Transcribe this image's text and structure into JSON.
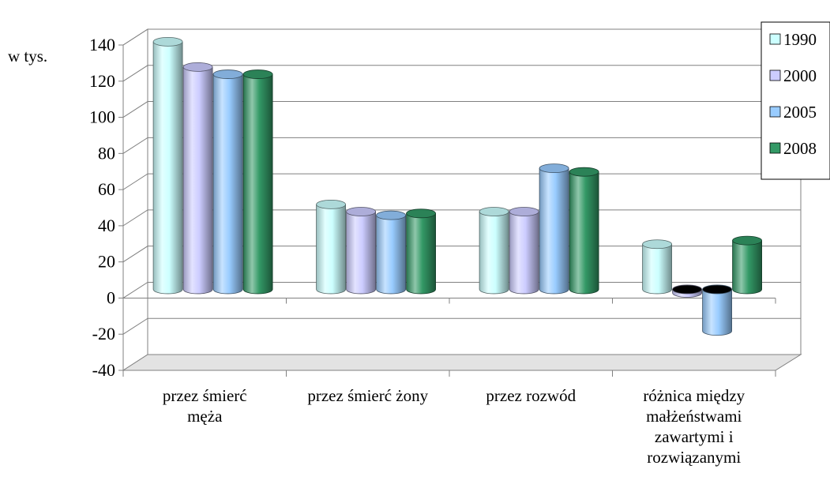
{
  "chart_data": {
    "type": "bar",
    "style": "3d-cylinder",
    "ylabel": "w tys.",
    "ylim": [
      -40,
      140
    ],
    "ytick_step": 20,
    "grid": true,
    "legend_position": "right",
    "categories": [
      [
        "przez śmierć",
        "męża"
      ],
      [
        "przez śmierć żony"
      ],
      [
        "przez rozwód"
      ],
      [
        "różnica między",
        "małżeństwami",
        "zawartymi i",
        "rozwiązanymi"
      ]
    ],
    "series": [
      {
        "name": "1990",
        "color": "#ccffff",
        "values": [
          137,
          47,
          43,
          25
        ]
      },
      {
        "name": "2000",
        "color": "#ccccff",
        "values": [
          123,
          43,
          43,
          -2
        ]
      },
      {
        "name": "2005",
        "color": "#99ccff",
        "values": [
          119,
          41,
          67,
          -23
        ]
      },
      {
        "name": "2008",
        "color": "#339966",
        "values": [
          119,
          42,
          65,
          27
        ]
      }
    ]
  }
}
